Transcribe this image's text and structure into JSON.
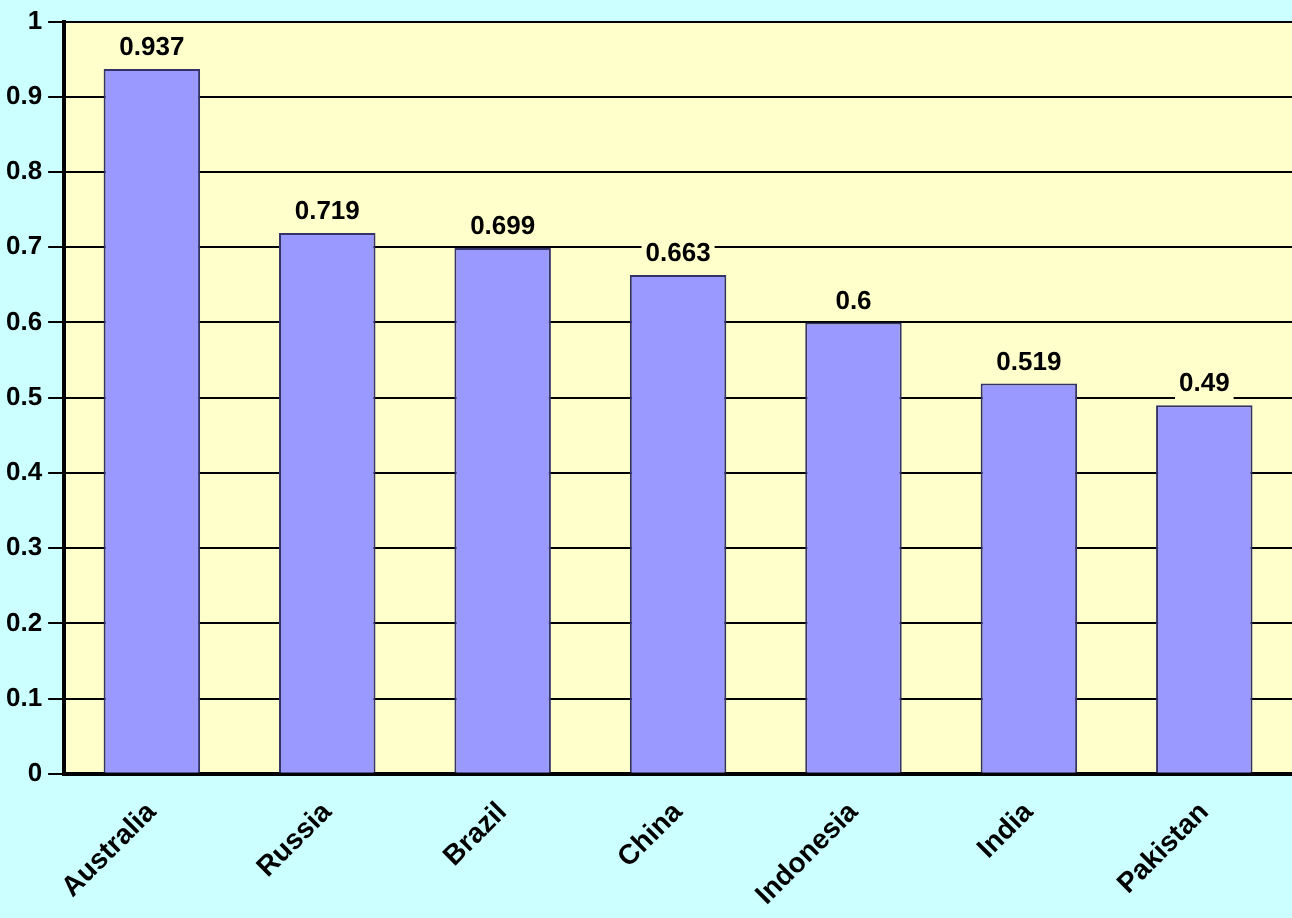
{
  "chart_data": {
    "type": "bar",
    "categories": [
      "Australia",
      "Russia",
      "Brazil",
      "China",
      "Indonesia",
      "India",
      "Pakistan"
    ],
    "values": [
      0.937,
      0.719,
      0.699,
      0.663,
      0.6,
      0.519,
      0.49
    ],
    "color": "#9999ff",
    "ylim": [
      0,
      1
    ],
    "yticks": [
      0,
      0.1,
      0.2,
      0.3,
      0.4,
      0.5,
      0.6,
      0.7,
      0.8,
      0.9,
      1
    ],
    "grid": "y",
    "data_labels": true
  }
}
